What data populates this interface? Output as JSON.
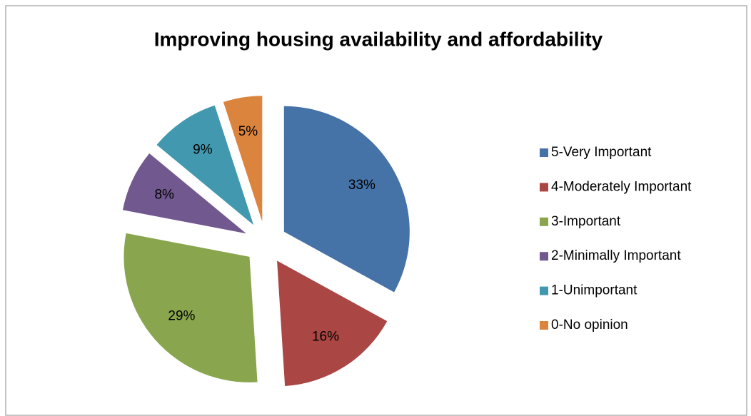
{
  "chart_data": {
    "type": "pie",
    "title": "Improving housing availability and affordability",
    "categories": [
      "5-Very Important",
      "4-Moderately Important",
      "3-Important",
      "2-Minimally Important",
      "1-Unimportant",
      "0-No opinion"
    ],
    "values": [
      33,
      16,
      29,
      8,
      9,
      5
    ],
    "value_labels": [
      "33%",
      "16%",
      "29%",
      "8%",
      "9%",
      "5%"
    ],
    "colors": [
      "#4572a7",
      "#aa4643",
      "#89a54e",
      "#71588f",
      "#4198af",
      "#db843d"
    ],
    "legend": "right"
  }
}
